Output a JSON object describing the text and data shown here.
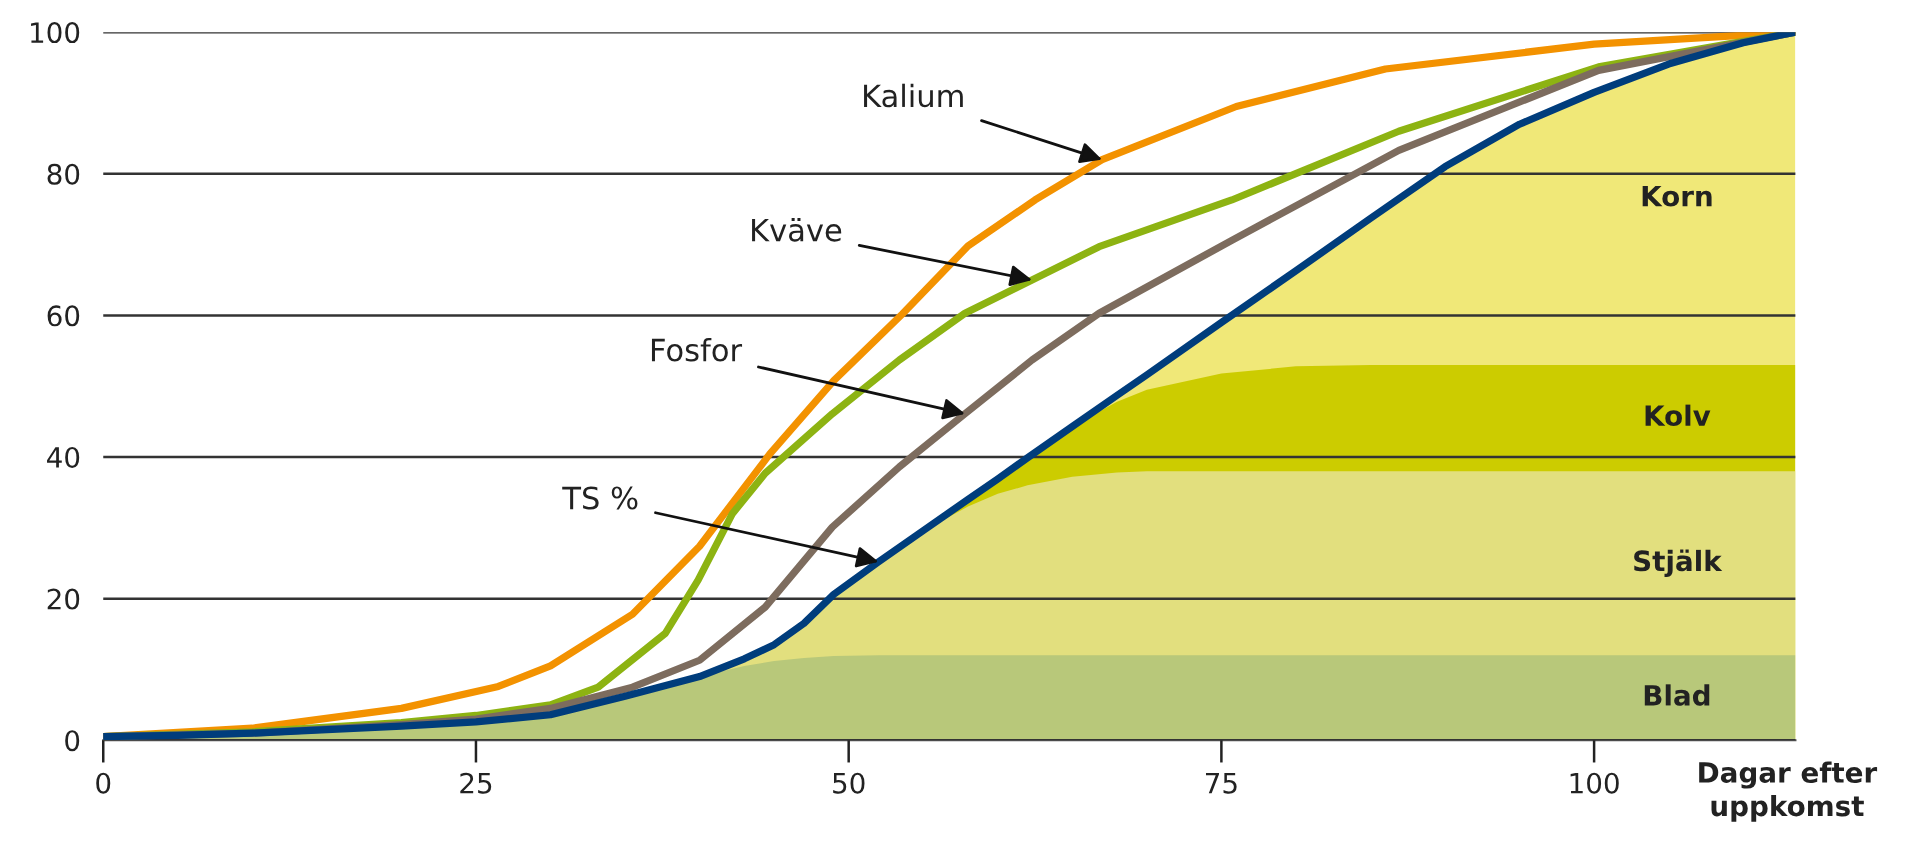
{
  "chart_data": {
    "type": "line",
    "x": [
      0,
      5,
      10,
      15,
      20,
      25,
      30,
      35,
      40,
      43,
      45,
      47,
      49,
      52,
      55,
      58,
      60,
      62,
      65,
      68,
      70,
      75,
      80,
      85,
      90,
      95,
      100,
      105,
      110,
      113.5
    ],
    "series": [
      {
        "name": "Korn",
        "type": "area",
        "color": "#f0e878",
        "values": [
          0.5,
          0.7,
          1,
          1.5,
          2,
          2.6,
          3.6,
          6.2,
          9,
          11.5,
          13.5,
          16.5,
          20.6,
          25.2,
          29.6,
          34,
          36.9,
          39.9,
          44.3,
          48.7,
          51.6,
          59,
          66.3,
          73.7,
          81,
          87,
          91.5,
          95.5,
          98.5,
          100
        ]
      },
      {
        "name": "Kolv",
        "type": "area",
        "color": "#cccc00",
        "values": [
          0.5,
          0.7,
          1,
          1.5,
          2,
          2.6,
          3.6,
          6.2,
          9,
          11.5,
          13.5,
          16.5,
          20.6,
          25.2,
          29.6,
          34,
          36.9,
          39.9,
          44.3,
          47.8,
          49.5,
          51.8,
          52.8,
          53,
          53,
          53,
          53,
          53,
          53,
          53
        ]
      },
      {
        "name": "Stjälk",
        "type": "area",
        "color": "#e2df7e",
        "values": [
          0.5,
          0.7,
          1,
          1.5,
          2,
          2.6,
          3.6,
          6.2,
          9,
          11.5,
          13.5,
          16.5,
          20.6,
          25.2,
          29.6,
          33,
          34.8,
          36,
          37.2,
          37.8,
          38,
          38,
          38,
          38,
          38,
          38,
          38,
          38,
          38,
          38
        ]
      },
      {
        "name": "Blad",
        "type": "area",
        "color": "#b8c87a",
        "values": [
          0.5,
          0.7,
          1,
          1.5,
          2,
          2.6,
          3.6,
          6.2,
          9,
          10.5,
          11.2,
          11.6,
          11.9,
          12,
          12,
          12,
          12,
          12,
          12,
          12,
          12,
          12,
          12,
          12,
          12,
          12,
          12,
          12,
          12,
          12
        ]
      },
      {
        "type": "line",
        "color": "#f39200",
        "x": [
          0,
          10,
          20,
          26.5,
          30,
          35.5,
          40,
          44.7,
          49,
          53.6,
          58,
          62.5,
          67,
          76,
          86,
          100,
          113.5
        ],
        "values": [
          0.5,
          1.7,
          4.5,
          7.6,
          10.5,
          17.8,
          27.4,
          40.4,
          50.8,
          60.2,
          69.8,
          76.3,
          82,
          89.5,
          94.8,
          98.3,
          100
        ]
      },
      {
        "type": "line",
        "color": "#8db312",
        "x": [
          0,
          10,
          20,
          25,
          30,
          33.2,
          37.7,
          39.9,
          42.2,
          44.4,
          48.9,
          53.4,
          57.8,
          62.3,
          66.8,
          75.7,
          86.9,
          100.3,
          113.5
        ],
        "values": [
          0.5,
          1.2,
          2.5,
          3.5,
          5,
          7.5,
          15.1,
          22.6,
          32,
          37.7,
          46.1,
          53.7,
          60.3,
          65,
          69.7,
          76.3,
          86,
          95.1,
          100
        ]
      },
      {
        "type": "line",
        "color": "#7d6c5e",
        "x": [
          0,
          10,
          20,
          25,
          30,
          35.5,
          40,
          44.4,
          48.9,
          53.4,
          57.8,
          62.3,
          66.8,
          75.7,
          86.9,
          100.3,
          113.5
        ],
        "values": [
          0.5,
          1,
          2.2,
          3,
          4.5,
          7.5,
          11.3,
          18.8,
          30.1,
          38.6,
          46.1,
          53.7,
          60.3,
          70.6,
          83.3,
          94.6,
          100
        ]
      },
      {
        "color": "#003d7c",
        "values": [
          0.5,
          0.7,
          1,
          1.5,
          2,
          2.6,
          3.6,
          6.2,
          9,
          11.5,
          13.5,
          16.5,
          20.6,
          25.2,
          29.6,
          34,
          36.9,
          39.9,
          44.3,
          48.7,
          51.6,
          59,
          66.3,
          73.7,
          81,
          87,
          91.5,
          95.5,
          98.5,
          100
        ]
      }
    ],
    "annotations": [
      {
        "text": "Kalium",
        "x": 67,
        "y": 82
      },
      {
        "text": "Kväve",
        "x": 62.3,
        "y": 65
      },
      {
        "text": "Fosfor",
        "x": 57.8,
        "y": 46.1
      },
      {
        "text": "TS %",
        "x": 52,
        "y": 25.2
      }
    ],
    "xlabel": "Dagar efter\nuppkomst",
    "xlim": [
      0,
      113.5
    ],
    "ylim": [
      0,
      100
    ],
    "xticks": [
      0,
      25,
      50,
      75,
      100
    ],
    "yticks": [
      0,
      20,
      40,
      60,
      80,
      100
    ],
    "grid": "y",
    "legend": false,
    "marker": "none",
    "line_style": "solid"
  }
}
